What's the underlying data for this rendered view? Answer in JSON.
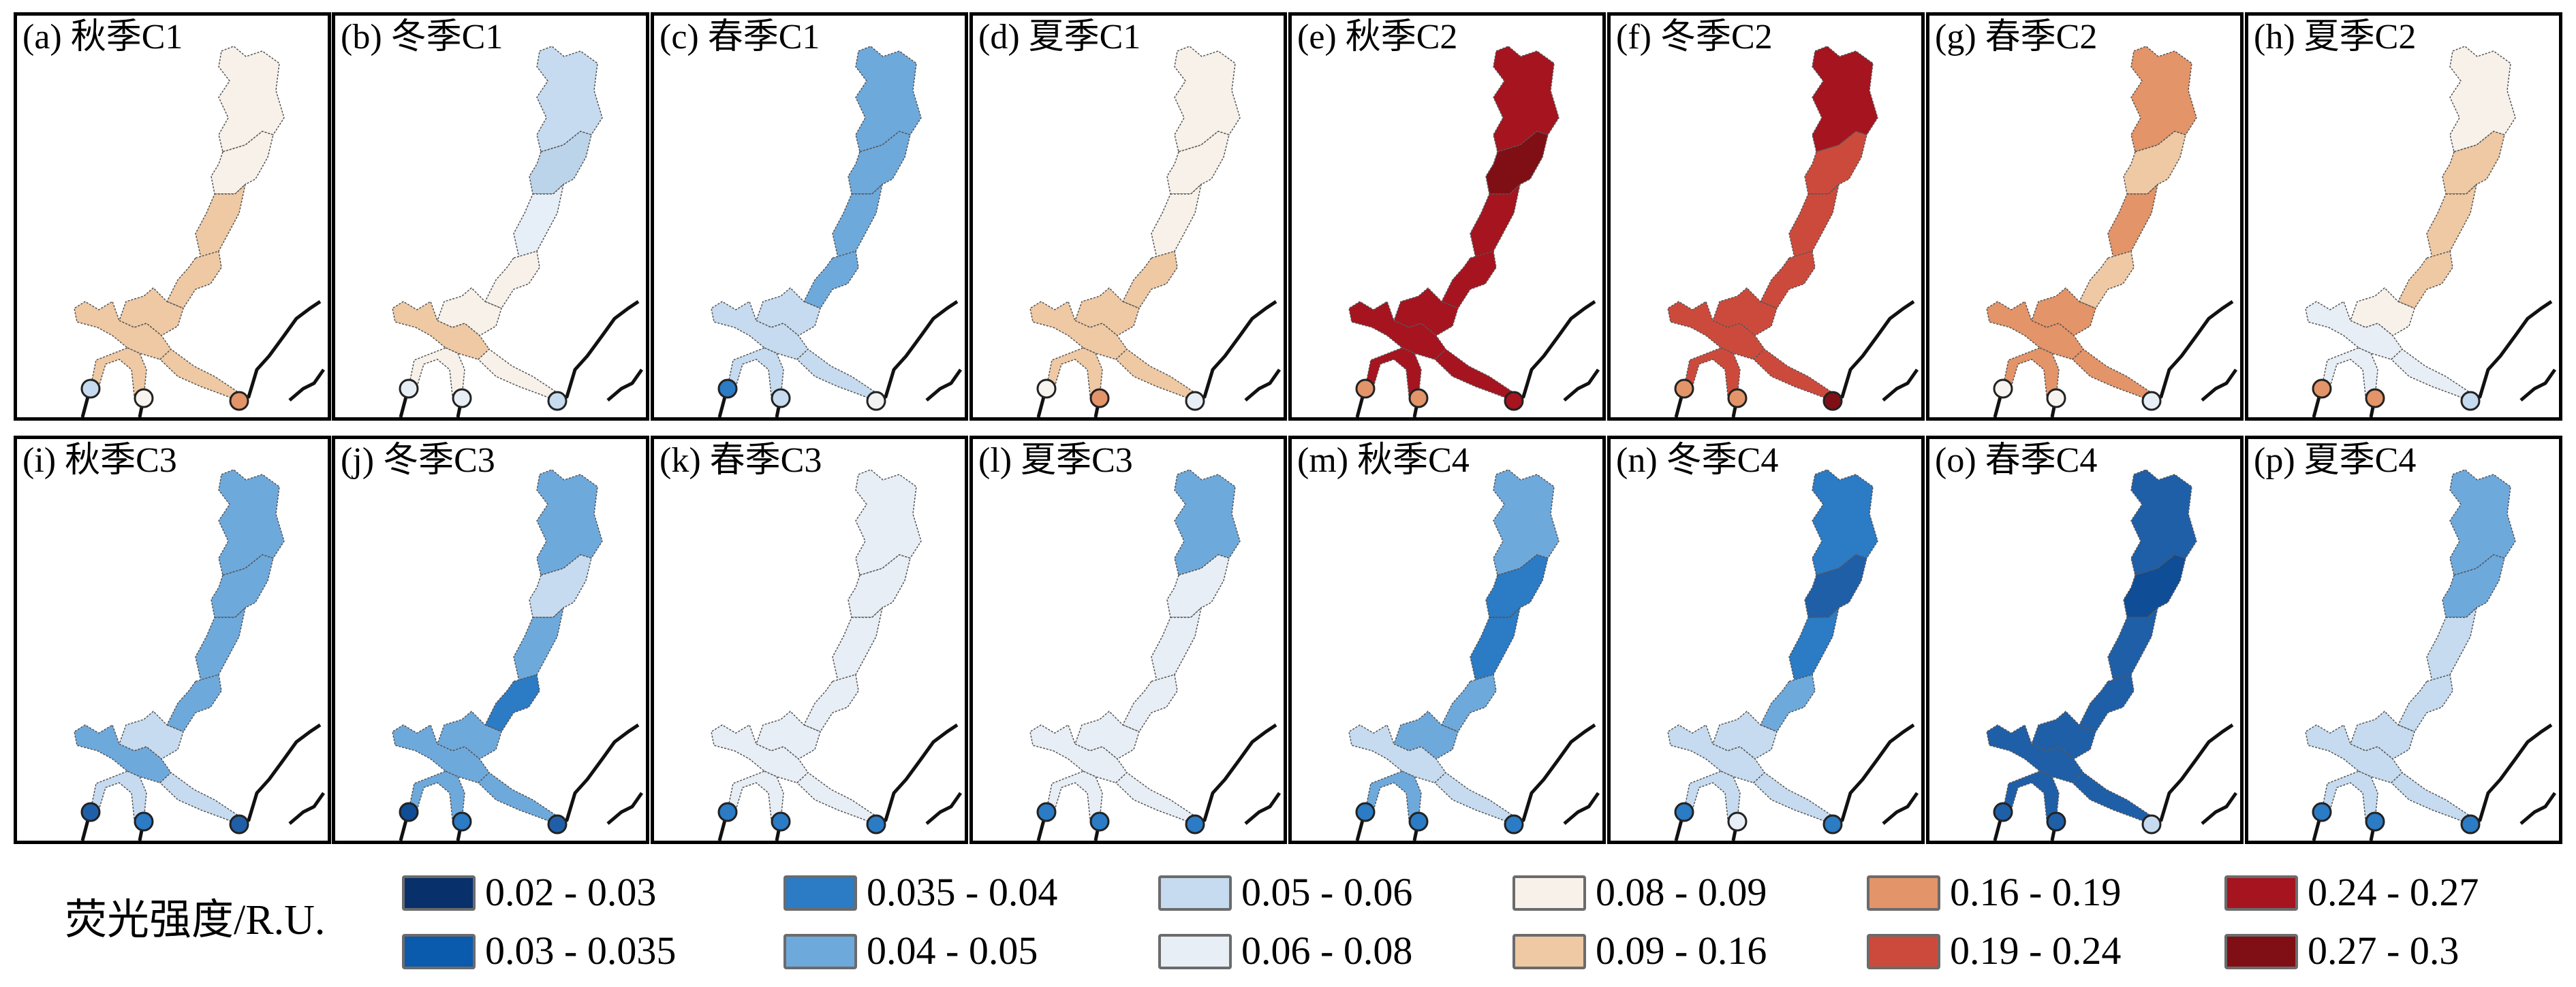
{
  "panels": [
    {
      "label": "(a) 秋季C1",
      "colors": [
        "#f7f1ea",
        "#f7f1ea",
        "#eec9a4",
        "#eec9a4",
        "#eec9a4",
        "#eec9a4",
        "#eec9a4",
        "#eec9a4"
      ],
      "dots": [
        "#c6dbef",
        "#f7f4f0",
        "#e39468"
      ]
    },
    {
      "label": "(b) 冬季C1",
      "colors": [
        "#c6dbef",
        "#bcd4ea",
        "#e6eef7",
        "#f7f1ea",
        "#f7f1ea",
        "#eec9a4",
        "#f7f1ea",
        "#f7f1ea"
      ],
      "dots": [
        "#e8eef5",
        "#e8eef5",
        "#c6dbef"
      ]
    },
    {
      "label": "(c) 春季C1",
      "colors": [
        "#6ea9dc",
        "#6ea9dc",
        "#6ea9dc",
        "#6ea9dc",
        "#c6dbef",
        "#c6dbef",
        "#c6dbef",
        "#c6dbef"
      ],
      "dots": [
        "#2b7bc5",
        "#c6dbef",
        "#f2f2f2"
      ]
    },
    {
      "label": "(d) 夏季C1",
      "colors": [
        "#f7f1ea",
        "#f7f1ea",
        "#f7f1ea",
        "#eec9a4",
        "#eec9a4",
        "#eec9a4",
        "#eec9a4",
        "#eec9a4"
      ],
      "dots": [
        "#f7f4f0",
        "#e39468",
        "#e8eef5"
      ]
    },
    {
      "label": "(e) 秋季C2",
      "colors": [
        "#a5141f",
        "#7f0f15",
        "#a5141f",
        "#a5141f",
        "#a5141f",
        "#a5141f",
        "#a5141f",
        "#a5141f"
      ],
      "dots": [
        "#e39468",
        "#e39468",
        "#a5141f"
      ]
    },
    {
      "label": "(f) 冬季C2",
      "colors": [
        "#a5141f",
        "#cc4a3c",
        "#cc4a3c",
        "#cc4a3c",
        "#cc4a3c",
        "#cc4a3c",
        "#cc4a3c",
        "#cc4a3c"
      ],
      "dots": [
        "#e39468",
        "#e39468",
        "#7f0f15"
      ]
    },
    {
      "label": "(g) 春季C2",
      "colors": [
        "#e39468",
        "#eec9a4",
        "#e39468",
        "#eec9a4",
        "#e39468",
        "#e39468",
        "#e39468",
        "#e39468"
      ],
      "dots": [
        "#f7f4f0",
        "#f7f4f0",
        "#e8eef5"
      ]
    },
    {
      "label": "(h) 夏季C2",
      "colors": [
        "#f7f1ea",
        "#eec9a4",
        "#eec9a4",
        "#eec9a4",
        "#f7f1ea",
        "#e8eef5",
        "#e8eef5",
        "#e8eef5"
      ],
      "dots": [
        "#e39468",
        "#e39468",
        "#c6dbef"
      ]
    },
    {
      "label": "(i) 秋季C3",
      "colors": [
        "#6ea9dc",
        "#6ea9dc",
        "#6ea9dc",
        "#6ea9dc",
        "#c6dbef",
        "#6ea9dc",
        "#c6dbef",
        "#c6dbef"
      ],
      "dots": [
        "#1f5fa8",
        "#2b7bc5",
        "#1f5fa8"
      ]
    },
    {
      "label": "(j) 冬季C3",
      "colors": [
        "#6ea9dc",
        "#c6dbef",
        "#6ea9dc",
        "#2b7bc5",
        "#6ea9dc",
        "#6ea9dc",
        "#6ea9dc",
        "#6ea9dc"
      ],
      "dots": [
        "#0f4d96",
        "#2b7bc5",
        "#1f5fa8"
      ]
    },
    {
      "label": "(k) 春季C3",
      "colors": [
        "#e8eef5",
        "#e8eef5",
        "#e8eef5",
        "#e8eef5",
        "#e8eef5",
        "#e8eef5",
        "#e8eef5",
        "#e8eef5"
      ],
      "dots": [
        "#2b7bc5",
        "#2b7bc5",
        "#2b7bc5"
      ]
    },
    {
      "label": "(l) 夏季C3",
      "colors": [
        "#6ea9dc",
        "#e8eef5",
        "#e8eef5",
        "#e8eef5",
        "#e8eef5",
        "#e8eef5",
        "#e8eef5",
        "#e8eef5"
      ],
      "dots": [
        "#2b7bc5",
        "#2b7bc5",
        "#2b7bc5"
      ]
    },
    {
      "label": "(m) 秋季C4",
      "colors": [
        "#6ea9dc",
        "#2b7bc5",
        "#2b7bc5",
        "#6ea9dc",
        "#6ea9dc",
        "#c6dbef",
        "#6ea9dc",
        "#c6dbef"
      ],
      "dots": [
        "#2b7bc5",
        "#2b7bc5",
        "#2b7bc5"
      ]
    },
    {
      "label": "(n) 冬季C4",
      "colors": [
        "#2b7bc5",
        "#1f5fa8",
        "#2b7bc5",
        "#6ea9dc",
        "#c6dbef",
        "#c6dbef",
        "#c6dbef",
        "#c6dbef"
      ],
      "dots": [
        "#2b7bc5",
        "#e8eef5",
        "#2b7bc5"
      ]
    },
    {
      "label": "(o) 春季C4",
      "colors": [
        "#1f5fa8",
        "#0f4d96",
        "#1f5fa8",
        "#1f5fa8",
        "#1f5fa8",
        "#1f5fa8",
        "#1f5fa8",
        "#1f5fa8"
      ],
      "dots": [
        "#1f5fa8",
        "#1f5fa8",
        "#c6dbef"
      ]
    },
    {
      "label": "(p) 夏季C4",
      "colors": [
        "#6ea9dc",
        "#6ea9dc",
        "#c6dbef",
        "#c6dbef",
        "#c6dbef",
        "#c6dbef",
        "#c6dbef",
        "#c6dbef"
      ],
      "dots": [
        "#2b7bc5",
        "#2b7bc5",
        "#2b7bc5"
      ]
    }
  ],
  "legend": {
    "title": "荧光强度/R.U.",
    "items": [
      {
        "label": "0.02 - 0.03",
        "color": "#08306b"
      },
      {
        "label": "0.03 - 0.035",
        "color": "#0a5aad"
      },
      {
        "label": "0.035 - 0.04",
        "color": "#2b7bc5"
      },
      {
        "label": "0.04 - 0.05",
        "color": "#6ea9dc"
      },
      {
        "label": "0.05 - 0.06",
        "color": "#c6dbef"
      },
      {
        "label": "0.06 - 0.08",
        "color": "#e8eef5"
      },
      {
        "label": "0.08 - 0.09",
        "color": "#f7f1ea"
      },
      {
        "label": "0.09 - 0.16",
        "color": "#eec9a4"
      },
      {
        "label": "0.16 - 0.19",
        "color": "#e39468"
      },
      {
        "label": "0.19 - 0.24",
        "color": "#cc4a3c"
      },
      {
        "label": "0.24 - 0.27",
        "color": "#a5141f"
      },
      {
        "label": "0.27 - 0.3",
        "color": "#7f0f15"
      }
    ]
  }
}
